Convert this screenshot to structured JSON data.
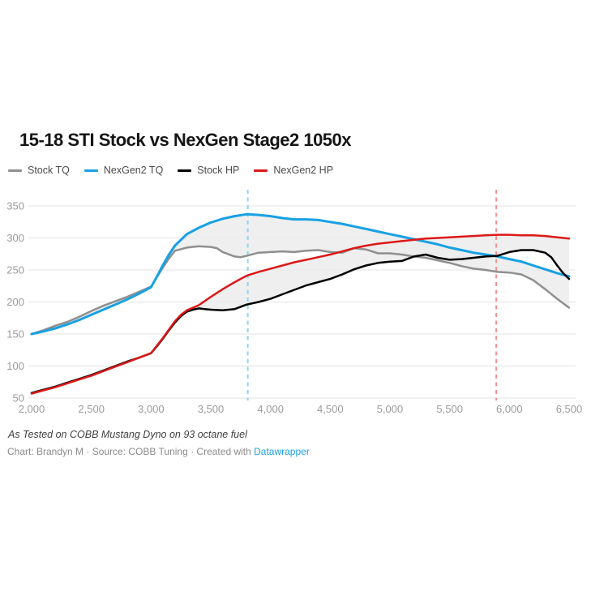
{
  "title": "15-18 STI Stock vs NexGen Stage2 1050x",
  "legend": [
    {
      "label": "Stock TQ",
      "color": "#8f8f8f"
    },
    {
      "label": "NexGen2 TQ",
      "color": "#18a1e4"
    },
    {
      "label": "Stock HP",
      "color": "#000000"
    },
    {
      "label": "NexGen2 HP",
      "color": "#dc1818"
    }
  ],
  "footnote": "As Tested on COBB Mustang Dyno on 93 octane fuel",
  "byline": {
    "text": "Chart: Brandyn M · Source: COBB Tuning · Created with ",
    "link_label": "Datawrapper"
  },
  "chart_data": {
    "type": "line",
    "title": "15-18 STI Stock vs NexGen Stage2 1050x",
    "xlabel": "",
    "ylabel": "",
    "xlim": [
      2000,
      6500
    ],
    "ylim": [
      50,
      375
    ],
    "grid": true,
    "legend_position": "top",
    "x_ticks": [
      {
        "value": 2000,
        "label": "2,000"
      },
      {
        "value": 2500,
        "label": "2,500"
      },
      {
        "value": 3000,
        "label": "3,000"
      },
      {
        "value": 3500,
        "label": "3,500"
      },
      {
        "value": 4000,
        "label": "4,000"
      },
      {
        "value": 4500,
        "label": "4,500"
      },
      {
        "value": 5000,
        "label": "5,000"
      },
      {
        "value": 5500,
        "label": "5,500"
      },
      {
        "value": 6000,
        "label": "6,000"
      },
      {
        "value": 6500,
        "label": "6,500"
      }
    ],
    "y_ticks": [
      {
        "value": 350,
        "label": "350"
      },
      {
        "value": 300,
        "label": "300"
      },
      {
        "value": 250,
        "label": "250"
      },
      {
        "value": 200,
        "label": "200"
      },
      {
        "value": 150,
        "label": "150"
      },
      {
        "value": 100,
        "label": "100"
      },
      {
        "value": 50,
        "label": "50"
      }
    ],
    "colors": {
      "grid": "#e3e3e3",
      "tick_label": "#9b9b9b",
      "fill": "#ececec",
      "vline_tq": "#8ed4f2",
      "vline_hp": "#f29090"
    },
    "vlines": [
      {
        "x": 3810,
        "color_key": "vline_tq",
        "meaning": "NexGen2 peak torque rpm"
      },
      {
        "x": 5890,
        "color_key": "vline_hp",
        "meaning": "NexGen2 peak horsepower rpm"
      }
    ],
    "fills": [
      {
        "upper": 1,
        "lower": 0
      },
      {
        "upper": 3,
        "lower": 2
      }
    ],
    "series": [
      {
        "name": "Stock TQ",
        "color": "#8f8f8f",
        "width": 2.5,
        "points": [
          [
            2000,
            150
          ],
          [
            2100,
            156
          ],
          [
            2200,
            163
          ],
          [
            2300,
            169
          ],
          [
            2400,
            177
          ],
          [
            2500,
            186
          ],
          [
            2600,
            194
          ],
          [
            2700,
            201
          ],
          [
            2800,
            208
          ],
          [
            2900,
            216
          ],
          [
            3000,
            224
          ],
          [
            3050,
            239
          ],
          [
            3100,
            254
          ],
          [
            3150,
            268
          ],
          [
            3200,
            280
          ],
          [
            3300,
            285
          ],
          [
            3400,
            287
          ],
          [
            3500,
            286
          ],
          [
            3550,
            284
          ],
          [
            3600,
            278
          ],
          [
            3700,
            271
          ],
          [
            3750,
            270
          ],
          [
            3800,
            272
          ],
          [
            3900,
            277
          ],
          [
            4000,
            278
          ],
          [
            4100,
            279
          ],
          [
            4200,
            278
          ],
          [
            4300,
            280
          ],
          [
            4400,
            281
          ],
          [
            4500,
            278
          ],
          [
            4600,
            277
          ],
          [
            4700,
            284
          ],
          [
            4800,
            282
          ],
          [
            4900,
            276
          ],
          [
            5000,
            276
          ],
          [
            5100,
            274
          ],
          [
            5200,
            271
          ],
          [
            5300,
            269
          ],
          [
            5400,
            265
          ],
          [
            5500,
            261
          ],
          [
            5600,
            256
          ],
          [
            5700,
            252
          ],
          [
            5800,
            250
          ],
          [
            5900,
            247
          ],
          [
            6000,
            246
          ],
          [
            6100,
            243
          ],
          [
            6200,
            234
          ],
          [
            6300,
            220
          ],
          [
            6400,
            205
          ],
          [
            6500,
            191
          ]
        ]
      },
      {
        "name": "NexGen2 TQ",
        "color": "#18a1e4",
        "width": 3,
        "points": [
          [
            2000,
            150
          ],
          [
            2100,
            154
          ],
          [
            2200,
            159
          ],
          [
            2300,
            165
          ],
          [
            2400,
            172
          ],
          [
            2500,
            180
          ],
          [
            2600,
            188
          ],
          [
            2700,
            196
          ],
          [
            2800,
            204
          ],
          [
            2900,
            213
          ],
          [
            3000,
            223
          ],
          [
            3050,
            240
          ],
          [
            3100,
            258
          ],
          [
            3150,
            274
          ],
          [
            3200,
            288
          ],
          [
            3300,
            306
          ],
          [
            3400,
            316
          ],
          [
            3500,
            324
          ],
          [
            3600,
            330
          ],
          [
            3700,
            334
          ],
          [
            3800,
            337
          ],
          [
            3900,
            336
          ],
          [
            4000,
            334
          ],
          [
            4100,
            331
          ],
          [
            4200,
            329
          ],
          [
            4300,
            329
          ],
          [
            4400,
            328
          ],
          [
            4500,
            325
          ],
          [
            4600,
            322
          ],
          [
            4700,
            318
          ],
          [
            4800,
            314
          ],
          [
            4900,
            310
          ],
          [
            5000,
            306
          ],
          [
            5100,
            302
          ],
          [
            5200,
            298
          ],
          [
            5300,
            294
          ],
          [
            5400,
            290
          ],
          [
            5500,
            285
          ],
          [
            5600,
            281
          ],
          [
            5700,
            277
          ],
          [
            5800,
            274
          ],
          [
            5900,
            271
          ],
          [
            6000,
            267
          ],
          [
            6100,
            263
          ],
          [
            6200,
            257
          ],
          [
            6300,
            251
          ],
          [
            6400,
            245
          ],
          [
            6500,
            240
          ]
        ]
      },
      {
        "name": "Stock HP",
        "color": "#000000",
        "width": 2.5,
        "points": [
          [
            2000,
            58
          ],
          [
            2100,
            63
          ],
          [
            2200,
            68
          ],
          [
            2300,
            74
          ],
          [
            2400,
            80
          ],
          [
            2500,
            86
          ],
          [
            2600,
            93
          ],
          [
            2700,
            100
          ],
          [
            2800,
            107
          ],
          [
            2900,
            113
          ],
          [
            3000,
            120
          ],
          [
            3050,
            131
          ],
          [
            3100,
            143
          ],
          [
            3150,
            156
          ],
          [
            3200,
            168
          ],
          [
            3250,
            178
          ],
          [
            3300,
            185
          ],
          [
            3350,
            188
          ],
          [
            3400,
            190
          ],
          [
            3450,
            189
          ],
          [
            3500,
            188
          ],
          [
            3600,
            187
          ],
          [
            3700,
            189
          ],
          [
            3800,
            196
          ],
          [
            3900,
            200
          ],
          [
            4000,
            205
          ],
          [
            4100,
            212
          ],
          [
            4200,
            219
          ],
          [
            4300,
            226
          ],
          [
            4400,
            231
          ],
          [
            4500,
            236
          ],
          [
            4600,
            243
          ],
          [
            4700,
            251
          ],
          [
            4800,
            257
          ],
          [
            4900,
            261
          ],
          [
            5000,
            263
          ],
          [
            5100,
            264
          ],
          [
            5200,
            271
          ],
          [
            5300,
            274
          ],
          [
            5400,
            269
          ],
          [
            5500,
            266
          ],
          [
            5600,
            267
          ],
          [
            5700,
            269
          ],
          [
            5800,
            271
          ],
          [
            5900,
            272
          ],
          [
            6000,
            278
          ],
          [
            6100,
            281
          ],
          [
            6200,
            281
          ],
          [
            6300,
            277
          ],
          [
            6350,
            270
          ],
          [
            6400,
            257
          ],
          [
            6450,
            245
          ],
          [
            6500,
            236
          ]
        ]
      },
      {
        "name": "NexGen2 HP",
        "color": "#dc1818",
        "width": 2.5,
        "points": [
          [
            2000,
            57
          ],
          [
            2100,
            62
          ],
          [
            2200,
            67
          ],
          [
            2300,
            73
          ],
          [
            2400,
            79
          ],
          [
            2500,
            85
          ],
          [
            2600,
            92
          ],
          [
            2700,
            99
          ],
          [
            2800,
            106
          ],
          [
            2900,
            113
          ],
          [
            3000,
            120
          ],
          [
            3050,
            132
          ],
          [
            3100,
            144
          ],
          [
            3150,
            157
          ],
          [
            3200,
            170
          ],
          [
            3250,
            180
          ],
          [
            3300,
            187
          ],
          [
            3400,
            195
          ],
          [
            3500,
            208
          ],
          [
            3600,
            220
          ],
          [
            3700,
            231
          ],
          [
            3800,
            241
          ],
          [
            3900,
            247
          ],
          [
            4000,
            252
          ],
          [
            4100,
            257
          ],
          [
            4200,
            262
          ],
          [
            4300,
            266
          ],
          [
            4400,
            270
          ],
          [
            4500,
            274
          ],
          [
            4600,
            279
          ],
          [
            4700,
            284
          ],
          [
            4800,
            288
          ],
          [
            4900,
            291
          ],
          [
            5000,
            293
          ],
          [
            5100,
            295
          ],
          [
            5200,
            297
          ],
          [
            5300,
            299
          ],
          [
            5400,
            300
          ],
          [
            5500,
            301
          ],
          [
            5600,
            302
          ],
          [
            5700,
            303
          ],
          [
            5800,
            304
          ],
          [
            5900,
            305
          ],
          [
            6000,
            305
          ],
          [
            6100,
            304
          ],
          [
            6200,
            304
          ],
          [
            6300,
            303
          ],
          [
            6400,
            301
          ],
          [
            6500,
            299
          ]
        ]
      }
    ]
  }
}
